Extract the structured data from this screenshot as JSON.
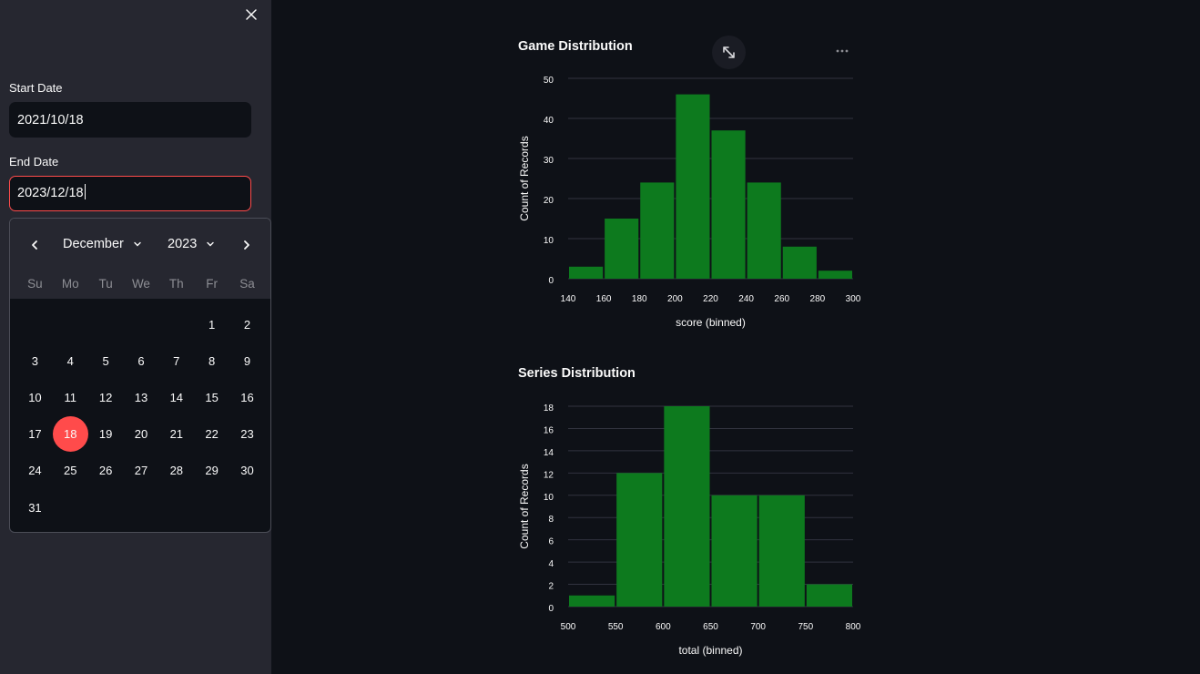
{
  "sidebar": {
    "close_icon": "close-icon",
    "start_label": "Start Date",
    "start_value": "2021/10/18",
    "end_label": "End Date",
    "end_value": "2023/12/18"
  },
  "calendar": {
    "month": "December",
    "year": "2023",
    "weekdays": [
      "Su",
      "Mo",
      "Tu",
      "We",
      "Th",
      "Fr",
      "Sa"
    ],
    "weeks": [
      [
        "",
        "",
        "",
        "",
        "",
        "1",
        "2"
      ],
      [
        "3",
        "4",
        "5",
        "6",
        "7",
        "8",
        "9"
      ],
      [
        "10",
        "11",
        "12",
        "13",
        "14",
        "15",
        "16"
      ],
      [
        "17",
        "18",
        "19",
        "20",
        "21",
        "22",
        "23"
      ],
      [
        "24",
        "25",
        "26",
        "27",
        "28",
        "29",
        "30"
      ],
      [
        "31",
        "",
        "",
        "",
        "",
        "",
        ""
      ]
    ],
    "selected_day": "18",
    "accent": "#ff4b4b"
  },
  "colors": {
    "bar": "#0d7a1e",
    "grid": "#31333f",
    "sidebar": "#262730",
    "background": "#0e1117"
  },
  "chart_data": [
    {
      "type": "bar",
      "title": "Game Distribution",
      "xlabel": "score (binned)",
      "ylabel": "Count of Records",
      "x_ticks": [
        "140",
        "160",
        "180",
        "200",
        "220",
        "240",
        "260",
        "280",
        "300"
      ],
      "y_ticks": [
        "0",
        "10",
        "20",
        "30",
        "40",
        "50"
      ],
      "ylim": [
        0,
        50
      ],
      "bins": [
        {
          "from": 140,
          "to": 160,
          "value": 3
        },
        {
          "from": 160,
          "to": 180,
          "value": 15
        },
        {
          "from": 180,
          "to": 200,
          "value": 24
        },
        {
          "from": 200,
          "to": 220,
          "value": 46
        },
        {
          "from": 220,
          "to": 240,
          "value": 37
        },
        {
          "from": 240,
          "to": 260,
          "value": 24
        },
        {
          "from": 260,
          "to": 280,
          "value": 8
        },
        {
          "from": 280,
          "to": 300,
          "value": 2
        }
      ]
    },
    {
      "type": "bar",
      "title": "Series Distribution",
      "xlabel": "total (binned)",
      "ylabel": "Count of Records",
      "x_ticks": [
        "500",
        "550",
        "600",
        "650",
        "700",
        "750",
        "800"
      ],
      "y_ticks": [
        "0",
        "2",
        "4",
        "6",
        "8",
        "10",
        "12",
        "14",
        "16",
        "18"
      ],
      "ylim": [
        0,
        18
      ],
      "bins": [
        {
          "from": 500,
          "to": 550,
          "value": 1
        },
        {
          "from": 550,
          "to": 600,
          "value": 12
        },
        {
          "from": 600,
          "to": 650,
          "value": 18
        },
        {
          "from": 650,
          "to": 700,
          "value": 10
        },
        {
          "from": 700,
          "to": 750,
          "value": 10
        },
        {
          "from": 750,
          "to": 800,
          "value": 2
        }
      ]
    }
  ]
}
